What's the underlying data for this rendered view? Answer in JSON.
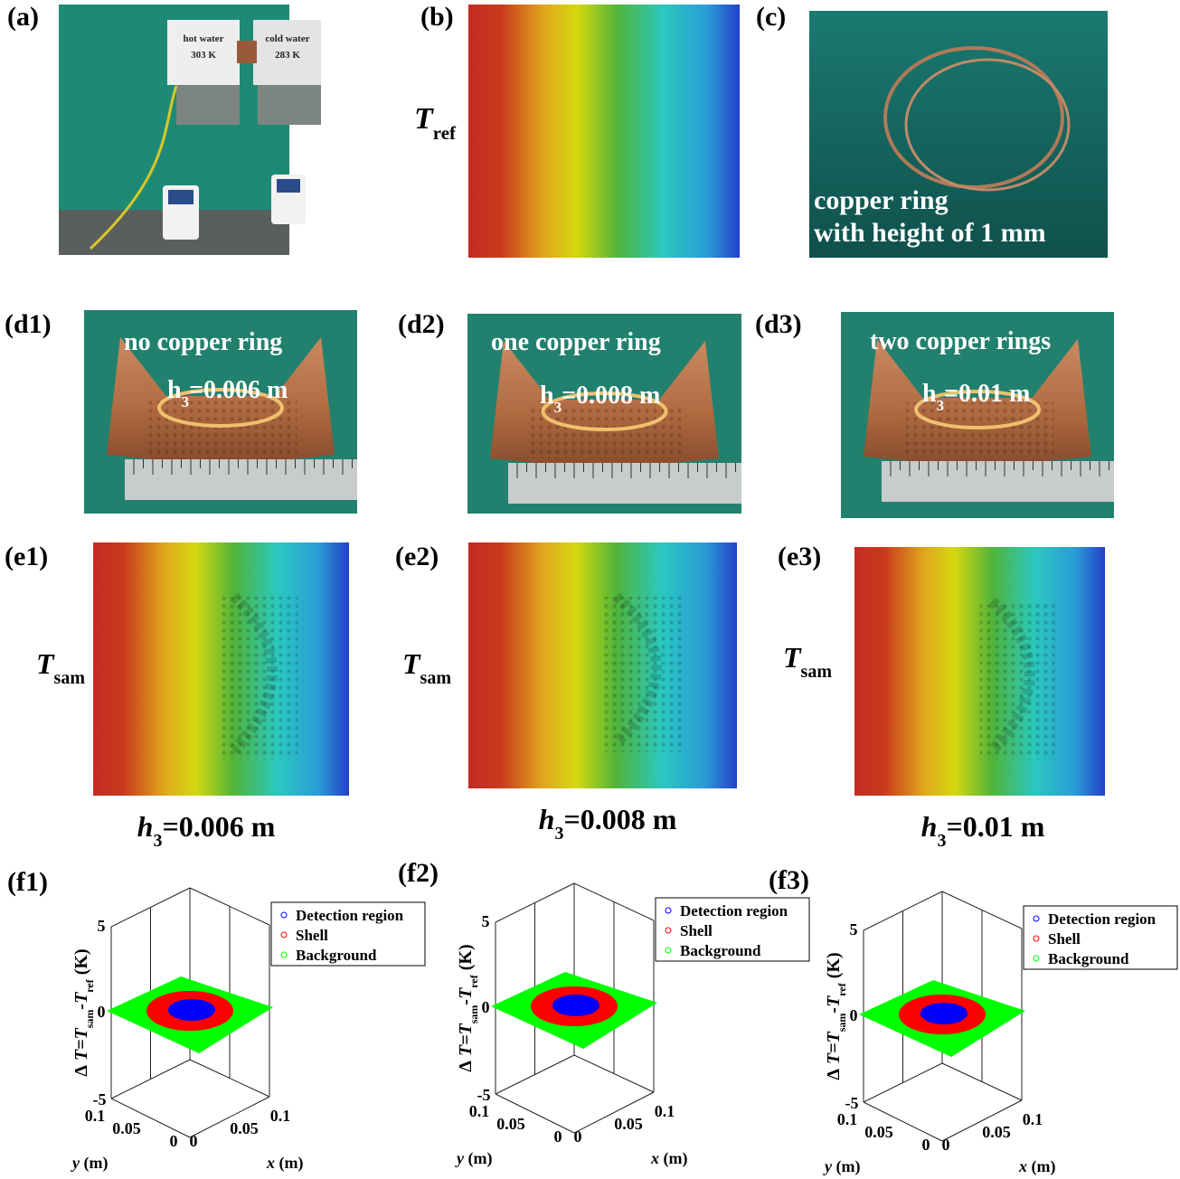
{
  "panels": {
    "a": {
      "label": "(a)",
      "hot": "hot water",
      "hot_temp": "303 K",
      "cold": "cold water",
      "cold_temp": "283 K"
    },
    "b": {
      "label": "(b)",
      "symbol": "T",
      "sub": "ref"
    },
    "c": {
      "label": "(c)",
      "line1": "copper ring",
      "line2": "with height of 1 mm"
    },
    "d": [
      {
        "label": "(d1)",
        "title": "no copper ring",
        "h": "h",
        "h_sub": "3",
        "h_value": "=0.006 m"
      },
      {
        "label": "(d2)",
        "title": "one copper ring",
        "h": "h",
        "h_sub": "3",
        "h_value": "=0.008 m"
      },
      {
        "label": "(d3)",
        "title": "two copper rings",
        "h": "h",
        "h_sub": "3",
        "h_value": "=0.01 m"
      }
    ],
    "e": [
      {
        "label": "(e1)",
        "symbol": "T",
        "sub": "sam",
        "h": "h",
        "h_sub": "3",
        "h_value": "=0.006 m"
      },
      {
        "label": "(e2)",
        "symbol": "T",
        "sub": "sam",
        "h": "h",
        "h_sub": "3",
        "h_value": "=0.008 m"
      },
      {
        "label": "(e3)",
        "symbol": "T",
        "sub": "sam",
        "h": "h",
        "h_sub": "3",
        "h_value": "=0.01 m"
      }
    ],
    "f": [
      {
        "label": "(f1)"
      },
      {
        "label": "(f2)"
      },
      {
        "label": "(f3)"
      }
    ],
    "plot": {
      "legend": [
        "Detection region",
        "Shell",
        "Background"
      ],
      "legend_colors": [
        "#0000ff",
        "#ff0000",
        "#00ff00"
      ],
      "zticks": [
        "5",
        "0",
        "-5"
      ],
      "yticks": [
        "0.1",
        "0.05",
        "0"
      ],
      "xticks": [
        "0",
        "0.05",
        "0.1"
      ],
      "zlabel": {
        "delta": "Δ",
        "t1": " T=T",
        "s1": "sam",
        "t2": "-T",
        "s2": "ref",
        "unit": " (K)"
      },
      "xlabel": {
        "var": "x",
        "unit": " (m)"
      },
      "ylabel": {
        "var": "y",
        "unit": " (m)"
      }
    }
  }
}
